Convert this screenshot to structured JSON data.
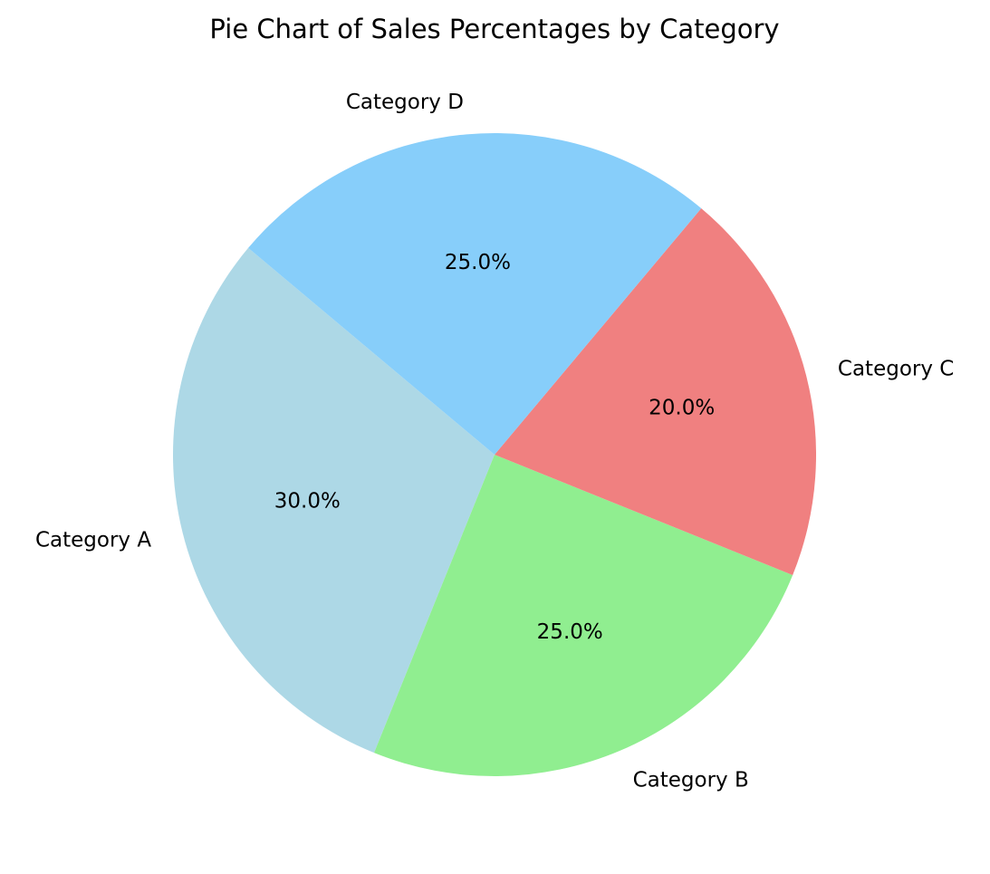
{
  "chart_data": {
    "type": "pie",
    "title": "Pie Chart of Sales Percentages by Category",
    "start_angle_deg": 140,
    "direction": "counterclockwise",
    "slices": [
      {
        "label": "Category A",
        "value": 30,
        "pct_text": "30.0%",
        "color": "#add8e6"
      },
      {
        "label": "Category B",
        "value": 25,
        "pct_text": "25.0%",
        "color": "#90ee90"
      },
      {
        "label": "Category C",
        "value": 20,
        "pct_text": "20.0%",
        "color": "#f08080"
      },
      {
        "label": "Category D",
        "value": 25,
        "pct_text": "25.0%",
        "color": "#87cefa"
      }
    ]
  }
}
